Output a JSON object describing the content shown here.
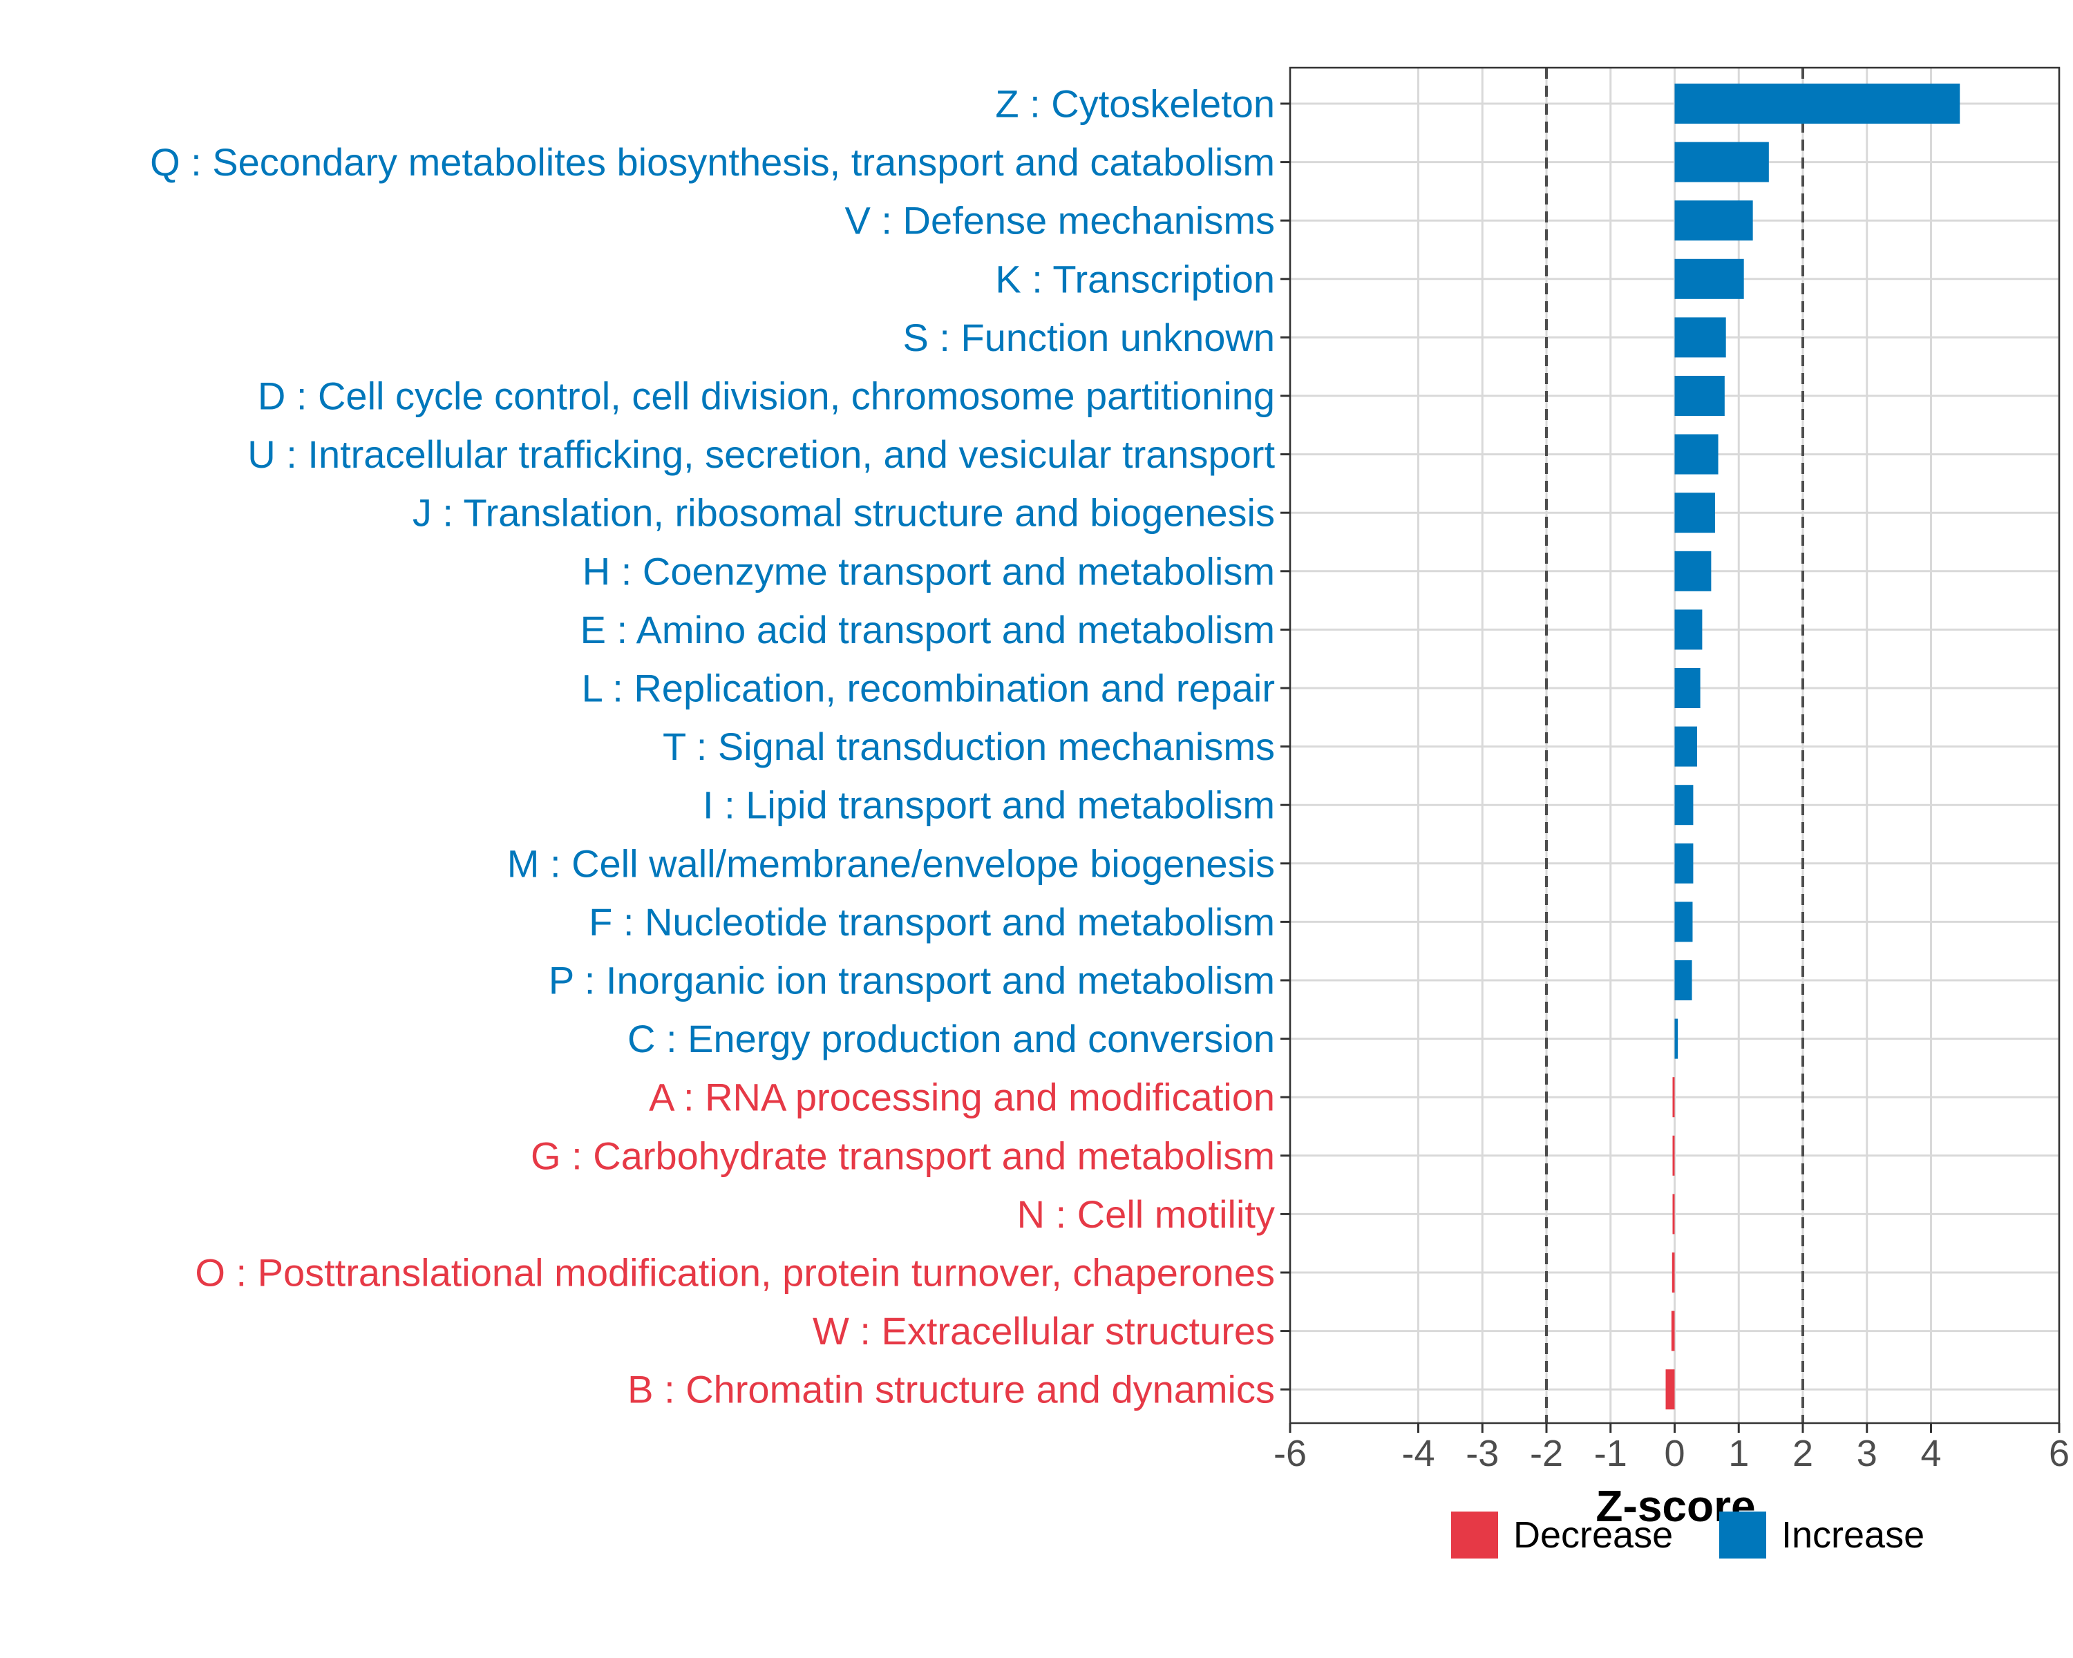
{
  "chart_data": {
    "type": "bar",
    "orientation": "horizontal",
    "xlabel": "Z-score",
    "xlim": [
      -6,
      6
    ],
    "x_ticks": [
      "-6",
      "-4",
      "-3",
      "-2",
      "-1",
      "0",
      "1",
      "2",
      "3",
      "4",
      "6"
    ],
    "x_tick_values": [
      -6,
      -4,
      -3,
      -2,
      -1,
      0,
      1,
      2,
      3,
      4,
      6
    ],
    "reference_lines": [
      -2,
      2
    ],
    "grid": true,
    "legend": {
      "position": "bottom",
      "entries": [
        {
          "label": "Decrease",
          "color": "#E63946"
        },
        {
          "label": "Increase",
          "color": "#0077BB"
        }
      ]
    },
    "categories": [
      "Z : Cytoskeleton",
      "Q : Secondary metabolites biosynthesis, transport and catabolism",
      "V : Defense mechanisms",
      "K : Transcription",
      "S : Function unknown",
      "D : Cell cycle control, cell division, chromosome partitioning",
      "U : Intracellular trafficking, secretion, and vesicular transport",
      "J : Translation, ribosomal structure and biogenesis",
      "H : Coenzyme transport and metabolism",
      "E : Amino acid transport and metabolism",
      "L : Replication, recombination and repair",
      "T : Signal transduction mechanisms",
      "I : Lipid transport and metabolism",
      "M : Cell wall/membrane/envelope biogenesis",
      "F : Nucleotide transport and metabolism",
      "P : Inorganic ion transport and metabolism",
      "C : Energy production and conversion",
      "A : RNA processing and modification",
      "G : Carbohydrate transport and metabolism",
      "N : Cell motility",
      "O : Posttranslational modification, protein turnover, chaperones",
      "W : Extracellular structures",
      "B : Chromatin structure and dynamics"
    ],
    "values": [
      4.45,
      1.47,
      1.22,
      1.08,
      0.8,
      0.78,
      0.68,
      0.63,
      0.57,
      0.43,
      0.4,
      0.35,
      0.29,
      0.29,
      0.28,
      0.27,
      0.05,
      -0.01,
      -0.02,
      -0.03,
      -0.04,
      -0.05,
      -0.14
    ],
    "groups": [
      "Increase",
      "Increase",
      "Increase",
      "Increase",
      "Increase",
      "Increase",
      "Increase",
      "Increase",
      "Increase",
      "Increase",
      "Increase",
      "Increase",
      "Increase",
      "Increase",
      "Increase",
      "Increase",
      "Increase",
      "Decrease",
      "Decrease",
      "Decrease",
      "Decrease",
      "Decrease",
      "Decrease"
    ]
  },
  "colors": {
    "increase": "#0077BB",
    "decrease": "#E63946",
    "grid": "#D9D9D9",
    "axis_text": "#4D4D4D",
    "reference_line": "#4D4D4D"
  }
}
